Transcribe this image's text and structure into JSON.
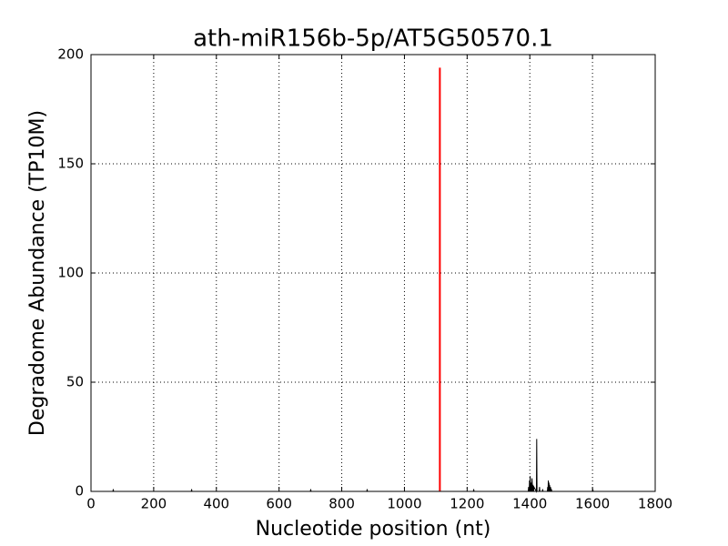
{
  "chart_data": {
    "type": "line",
    "title": "ath-miR156b-5p/AT5G50570.1",
    "x_label": "Nucleotide position (nt)",
    "y_label": "Degradome Abundance (TP10M)",
    "xlim": [
      0,
      1800
    ],
    "ylim": [
      0,
      200
    ],
    "xticks": [
      0,
      200,
      400,
      600,
      800,
      1000,
      1200,
      1400,
      1600,
      1800
    ],
    "yticks": [
      0,
      50,
      100,
      150,
      200
    ],
    "grid": true,
    "series": [
      {
        "color": "#000000",
        "x": [
          0,
          70,
          71,
          72,
          320,
          321,
          322,
          700,
          701,
          702,
          880,
          881,
          882,
          1220,
          1221,
          1222,
          1395,
          1396,
          1398,
          1399,
          1400,
          1401,
          1403,
          1404,
          1406,
          1407,
          1409,
          1410,
          1412,
          1413,
          1421,
          1422,
          1423,
          1430,
          1431,
          1432,
          1440,
          1441,
          1442,
          1456,
          1457,
          1458,
          1459,
          1460,
          1461,
          1462,
          1463,
          1465,
          1466,
          1468,
          1469,
          1470,
          1600,
          1601,
          1602,
          1700
        ],
        "values": [
          0,
          0,
          1,
          0,
          0,
          1,
          0,
          0,
          1,
          0,
          0,
          1,
          0,
          0,
          1,
          0,
          0,
          2,
          0,
          5,
          0,
          7,
          0,
          4,
          0,
          6,
          0,
          3,
          0,
          2,
          0,
          24,
          0,
          0,
          2,
          0,
          0,
          1,
          0,
          0,
          2,
          0,
          5,
          0,
          4,
          0,
          3,
          0,
          2,
          0,
          1,
          0,
          0,
          1,
          0,
          0
        ]
      },
      {
        "color": "#ff0000",
        "x": [
          1113,
          1113
        ],
        "values": [
          0,
          194
        ]
      }
    ]
  }
}
